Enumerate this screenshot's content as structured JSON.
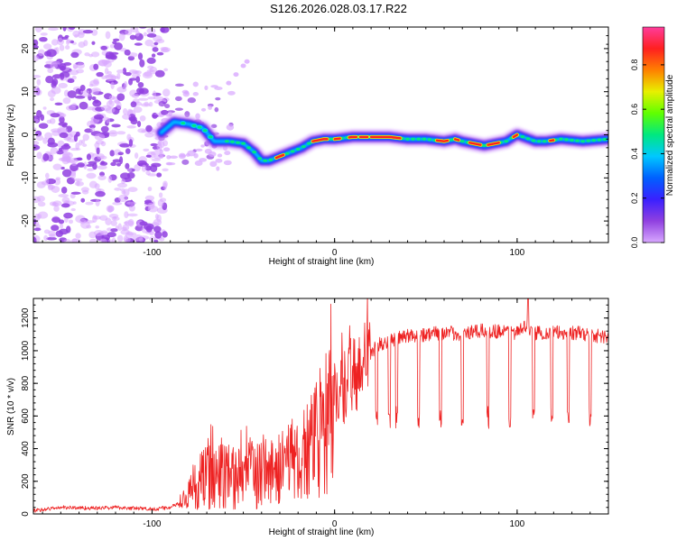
{
  "title": "S126.2026.028.03.17.R22",
  "colors": {
    "snr_line": "#ee2222",
    "spectrum_colormap": [
      "#d8a8ff",
      "#9040e0",
      "#3a20ff",
      "#0060ff",
      "#00c8ff",
      "#00e880",
      "#60ff00",
      "#e8f000",
      "#ff8000",
      "#ff2020",
      "#ff3c9c"
    ]
  },
  "chart_data": [
    {
      "type": "heatmap",
      "xlabel": "Height of straight line (km)",
      "ylabel": "Frequency (Hz)",
      "xlim": [
        -165,
        150
      ],
      "ylim": [
        -25,
        25
      ],
      "xticks": [
        -100,
        0,
        100
      ],
      "yticks": [
        -20,
        -10,
        0,
        10,
        20
      ],
      "colorbar": {
        "label": "Normalized spectral amplitude",
        "range": [
          0.0,
          0.97
        ],
        "ticks": [
          0.0,
          0.2,
          0.4,
          0.6,
          0.8
        ]
      },
      "ridge": {
        "x": [
          -95,
          -88,
          -80,
          -72,
          -66,
          -58,
          -50,
          -44,
          -40,
          -36,
          -30,
          -24,
          -18,
          -12,
          -6,
          0,
          10,
          20,
          30,
          40,
          50,
          60,
          66,
          70,
          76,
          82,
          88,
          94,
          100,
          110,
          116,
          124,
          136,
          150
        ],
        "y": [
          0.5,
          3,
          2.5,
          1.5,
          -1.5,
          -1.5,
          -2,
          -4,
          -6,
          -6,
          -5,
          -4,
          -3,
          -1.5,
          -1,
          -1,
          -0.5,
          -0.5,
          -0.5,
          -1,
          -1,
          -1.5,
          -1,
          -1.5,
          -2,
          -2.5,
          -2,
          -1.5,
          0,
          -1.5,
          -1.5,
          -1,
          -1.5,
          -1
        ]
      }
    },
    {
      "type": "line",
      "xlabel": "Height of straight line (km)",
      "ylabel": "SNR (10 * v/v)",
      "xlim": [
        -165,
        150
      ],
      "ylim": [
        0,
        1320
      ],
      "xticks": [
        -100,
        0,
        100
      ],
      "yticks": [
        0,
        200,
        400,
        600,
        800,
        1000,
        1200
      ],
      "series": [
        {
          "name": "SNR",
          "x": [
            -165,
            -150,
            -130,
            -120,
            -100,
            -90,
            -82,
            -75,
            -68,
            -60,
            -52,
            -45,
            -38,
            -30,
            -22,
            -15,
            -8,
            -3,
            2,
            8,
            15,
            20,
            25,
            30,
            40,
            50,
            60,
            70,
            80,
            90,
            100,
            105,
            110,
            120,
            130,
            140,
            150
          ],
          "y": [
            20,
            40,
            35,
            40,
            30,
            40,
            80,
            180,
            260,
            230,
            230,
            250,
            260,
            270,
            300,
            360,
            460,
            520,
            760,
            820,
            900,
            990,
            1040,
            1060,
            1090,
            1100,
            1110,
            1100,
            1120,
            1120,
            1110,
            1150,
            1110,
            1110,
            1110,
            1100,
            1080
          ]
        }
      ],
      "dropouts_x": [
        23,
        30,
        34,
        46,
        58,
        70,
        84,
        96,
        109,
        119,
        128,
        140
      ],
      "spike": {
        "x": 106,
        "y": 1320
      }
    }
  ]
}
